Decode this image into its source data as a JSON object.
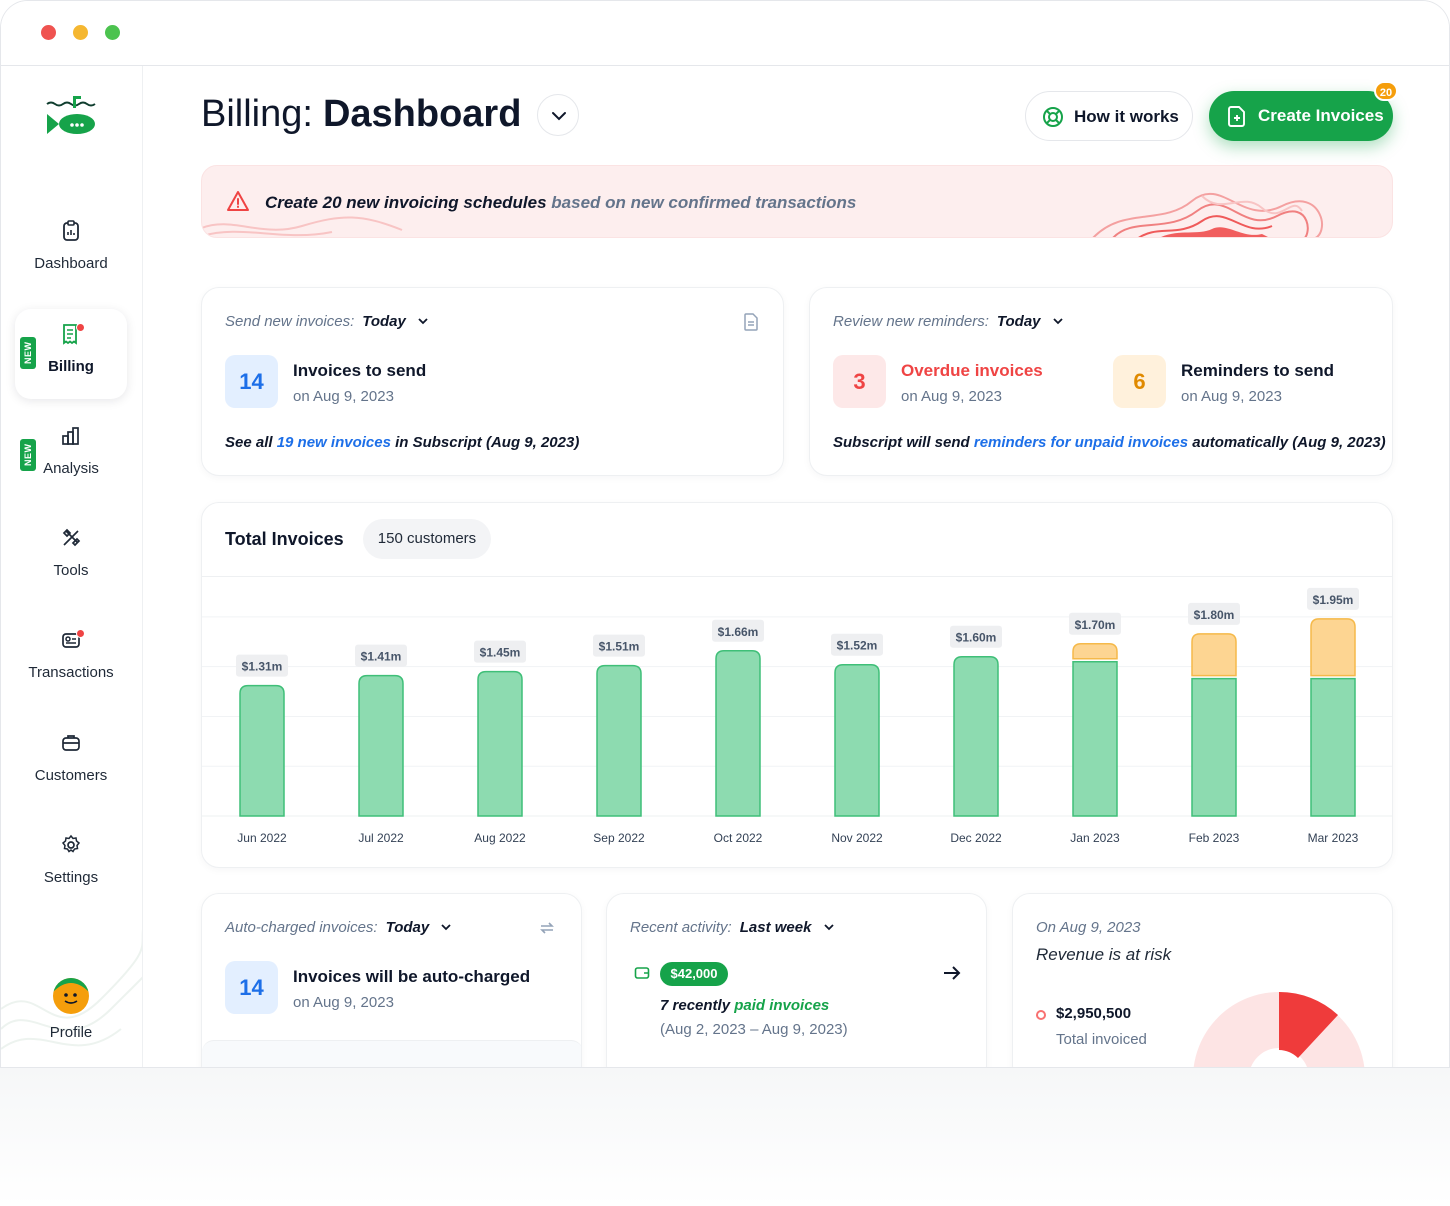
{
  "app": {
    "nav": [
      {
        "label": "Dashboard",
        "icon": "clipboard-icon"
      },
      {
        "label": "Billing",
        "icon": "receipt-icon",
        "new": "NEW",
        "active": true
      },
      {
        "label": "Analysis",
        "icon": "bar-chart-icon",
        "new": "NEW"
      },
      {
        "label": "Tools",
        "icon": "tools-icon"
      },
      {
        "label": "Transactions",
        "icon": "transactions-icon"
      },
      {
        "label": "Customers",
        "icon": "briefcase-icon"
      },
      {
        "label": "Settings",
        "icon": "gear-icon"
      },
      {
        "label": "Profile",
        "icon": "avatar"
      }
    ]
  },
  "header": {
    "title_prefix": "Billing:",
    "title_main": "Dashboard",
    "how_label": "How it works",
    "create_label": "Create Invoices",
    "create_badge": "20"
  },
  "alert": {
    "bold": "Create 20 new invoicing schedules",
    "rest": " based on new confirmed transactions"
  },
  "send_card": {
    "head_label": "Send new invoices:",
    "head_value": "Today",
    "count": "14",
    "title": "Invoices to send",
    "date": "on Aug 9, 2023",
    "foot_pre": "See all ",
    "foot_link": "19 new invoices",
    "foot_post": " in Subscript (Aug 9, 2023)"
  },
  "reminder_card": {
    "head_label": "Review new reminders:",
    "head_value": "Today",
    "overdue_count": "3",
    "overdue_title": "Overdue invoices",
    "overdue_date": "on Aug 9, 2023",
    "remind_count": "6",
    "remind_title": "Reminders to send",
    "remind_date": "on Aug 9, 2023",
    "foot_pre": "Subscript will send ",
    "foot_link": "reminders for unpaid invoices",
    "foot_post": " automatically (Aug 9, 2023)"
  },
  "total_card": {
    "title": "Total Invoices",
    "chip": "150 customers"
  },
  "chart_data": {
    "type": "bar",
    "stacked": true,
    "categories": [
      "Jun 2022",
      "Jul 2022",
      "Aug 2022",
      "Sep 2022",
      "Oct 2022",
      "Nov 2022",
      "Dec 2022",
      "Jan 2023",
      "Feb 2023",
      "Mar 2023"
    ],
    "labels": [
      "$1.31m",
      "$1.41m",
      "$1.45m",
      "$1.51m",
      "$1.66m",
      "$1.52m",
      "$1.60m",
      "$1.70m",
      "$1.80m",
      "$1.95m"
    ],
    "series": [
      {
        "values": [
          1.31,
          1.41,
          1.45,
          1.51,
          1.66,
          1.52,
          1.6,
          1.55,
          1.38,
          1.38
        ],
        "color": "#8ddbb0"
      },
      {
        "values": [
          0,
          0,
          0,
          0,
          0,
          0,
          0,
          0.15,
          0.42,
          0.57
        ],
        "color": "#fdd592"
      }
    ],
    "ylim": [
      0,
      2.2
    ],
    "grid": true
  },
  "auto_card": {
    "head_label": "Auto-charged invoices:",
    "head_value": "Today",
    "count": "14",
    "title": "Invoices will be auto-charged",
    "date": "on Aug 9, 2023"
  },
  "activity_card": {
    "head_label": "Recent activity:",
    "head_value": "Last week",
    "amount": "$42,000",
    "line_pre": "7 recently ",
    "line_link": "paid invoices",
    "range": "(Aug 2, 2023 – Aug 9, 2023)"
  },
  "risk_card": {
    "date": "On Aug 9, 2023",
    "title": "Revenue is at risk",
    "amount": "$2,950,500",
    "amount_label": "Total invoiced"
  },
  "colors": {
    "accent": "#16a34a",
    "link": "#1d6fe8",
    "danger": "#ef4444",
    "warning": "#f59e0b"
  }
}
